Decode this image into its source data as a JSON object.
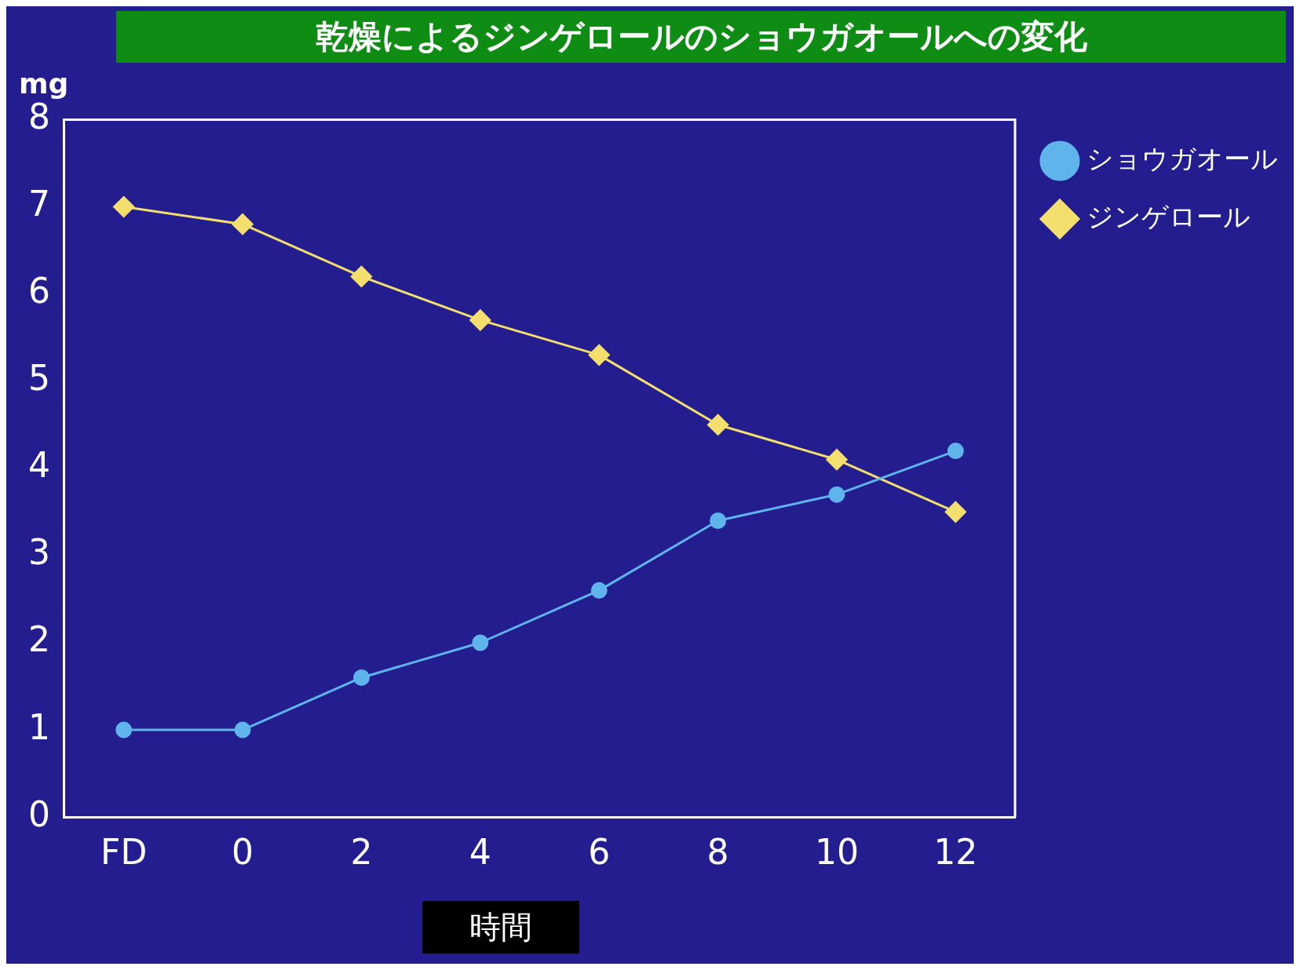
{
  "chart_data": {
    "type": "line",
    "title": "乾燥によるジンゲロールのショウガオールへの変化",
    "xlabel": "時間",
    "ylabel": "mg",
    "categories": [
      "FD",
      "0",
      "2",
      "4",
      "6",
      "8",
      "10",
      "12"
    ],
    "series": [
      {
        "name": "ショウガオール",
        "color": "#5fb4ec",
        "marker": "circle",
        "values": [
          1.0,
          1.0,
          1.6,
          2.0,
          2.6,
          3.4,
          3.7,
          4.2
        ]
      },
      {
        "name": "ジンゲロール",
        "color": "#f3df6e",
        "marker": "diamond",
        "values": [
          7.0,
          6.8,
          6.2,
          5.7,
          5.3,
          4.5,
          4.1,
          3.5
        ]
      }
    ],
    "ylim": [
      0,
      8
    ],
    "yticks": [
      0,
      1,
      2,
      3,
      4,
      5,
      6,
      7,
      8
    ],
    "grid": false,
    "legend": "top right",
    "line_style": "solid"
  }
}
